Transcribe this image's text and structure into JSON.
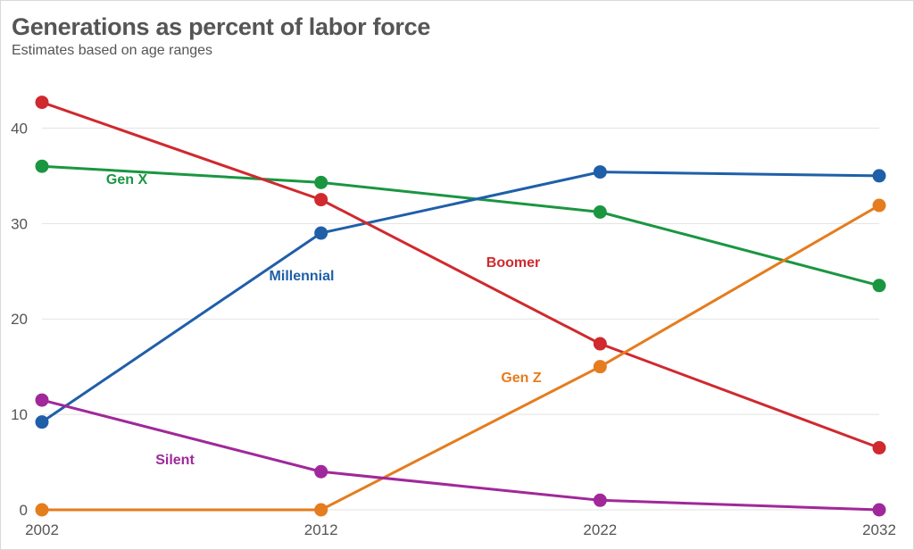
{
  "chart_data": {
    "type": "line",
    "title": "Generations as percent of labor force",
    "subtitle": "Estimates based on age ranges",
    "x": [
      2002,
      2012,
      2022,
      2032
    ],
    "xlabel": "",
    "ylabel": "",
    "ylim": [
      0,
      45
    ],
    "yticks": [
      0,
      10,
      20,
      30,
      40
    ],
    "grid": true,
    "legend": "inline labels",
    "series": [
      {
        "name": "Gen X",
        "color": "#1a9641",
        "values": [
          36.0,
          34.3,
          31.2,
          23.5
        ]
      },
      {
        "name": "Millennial",
        "color": "#1f5fa8",
        "values": [
          9.2,
          29.0,
          35.4,
          35.0
        ]
      },
      {
        "name": "Boomer",
        "color": "#d0292e",
        "values": [
          42.7,
          32.5,
          17.4,
          6.5
        ]
      },
      {
        "name": "Gen Z",
        "color": "#e57c1e",
        "values": [
          0.0,
          0.0,
          15.0,
          31.9
        ]
      },
      {
        "name": "Silent",
        "color": "#a0289a",
        "values": [
          11.5,
          4.0,
          1.0,
          0.0
        ]
      }
    ]
  }
}
